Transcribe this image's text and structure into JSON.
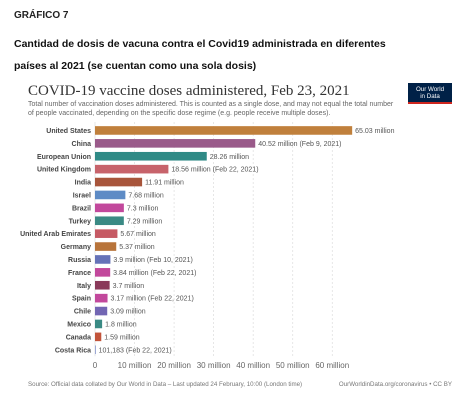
{
  "caption": {
    "label": "GRÁFICO 7",
    "line1": "Cantidad de dosis de vacuna contra el Covid19 administrada en diferentes",
    "line2": "países al 2021 (se cuentan como una sola dosis)"
  },
  "logo": {
    "line1": "Our World",
    "line2": "in Data",
    "bg": "#002147",
    "accent": "#ce261e"
  },
  "chart_data": {
    "type": "bar",
    "orientation": "horizontal",
    "title": "COVID-19 vaccine doses administered, Feb 23, 2021",
    "subtitle": "Total number of vaccination doses administered. This is counted as a single dose, and may not equal the total number of people vaccinated, depending on the specific dose regime (e.g. people receive multiple doses).",
    "categories": [
      "United States",
      "China",
      "European Union",
      "United Kingdom",
      "India",
      "Israel",
      "Brazil",
      "Turkey",
      "United Arab Emirates",
      "Germany",
      "Russia",
      "France",
      "Italy",
      "Spain",
      "Chile",
      "Mexico",
      "Canada",
      "Costa Rica"
    ],
    "values": [
      65030000,
      40520000,
      28260000,
      18560000,
      11910000,
      7680000,
      7300000,
      7290000,
      5670000,
      5370000,
      3900000,
      3840000,
      3700000,
      3170000,
      3090000,
      1800000,
      1590000,
      101183
    ],
    "value_labels": [
      "65.03 million",
      "40.52 million (Feb 9, 2021)",
      "28.26 million",
      "18.56 million (Feb 22, 2021)",
      "11.91 million",
      "7.68 million",
      "7.3 million",
      "7.29 million",
      "5.67 million",
      "5.37 million",
      "3.9 million (Feb 10, 2021)",
      "3.84 million (Feb 22, 2021)",
      "3.7 million",
      "3.17 million (Feb 22, 2021)",
      "3.09 million",
      "1.8 million",
      "1.59 million",
      "101,183 (Feb 22, 2021)"
    ],
    "colors": [
      "#c0803c",
      "#9a5a8a",
      "#2f8a86",
      "#c7636b",
      "#a8553b",
      "#5e8bc5",
      "#c2489c",
      "#3a8a84",
      "#c65a64",
      "#b8743a",
      "#6572b8",
      "#c2489c",
      "#8a3a5a",
      "#c2489c",
      "#7266b3",
      "#3a8a84",
      "#c2543a",
      "#5a6fb8"
    ],
    "xlim": [
      0,
      66000000
    ],
    "x_ticks": [
      0,
      10000000,
      20000000,
      30000000,
      40000000,
      50000000,
      60000000
    ],
    "x_tick_labels": [
      "0",
      "10 million",
      "20 million",
      "30 million",
      "40 million",
      "50 million",
      "60 million"
    ],
    "grid": true
  },
  "footer": {
    "source": "Source: Official data collated by Our World in Data – Last updated 24 February, 10:00 (London time)",
    "link": "OurWorldinData.org/coronavirus • CC BY"
  }
}
